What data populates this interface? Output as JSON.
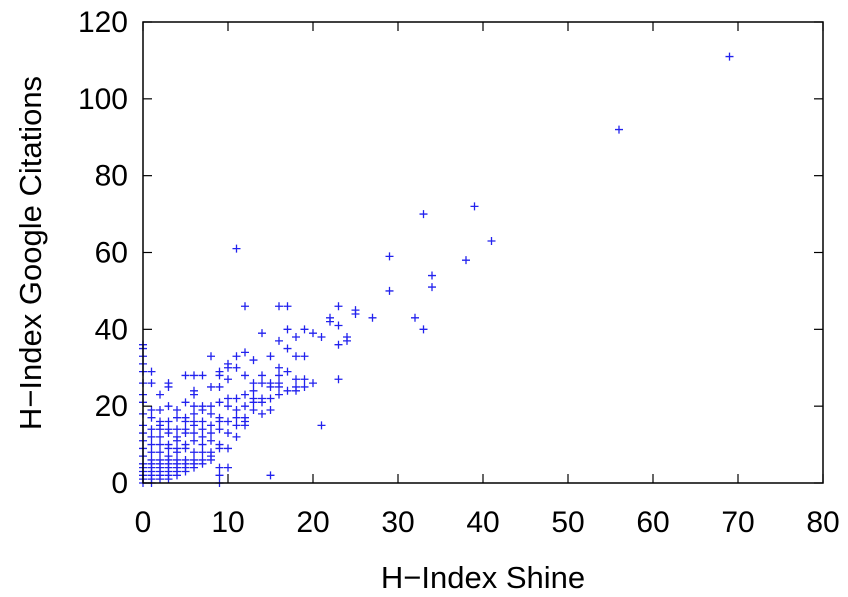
{
  "chart_data": {
    "type": "scatter",
    "title": "",
    "xlabel": "H−Index Shine",
    "ylabel": "H−Index Google Citations",
    "xlim": [
      0,
      80
    ],
    "ylim": [
      0,
      120
    ],
    "xticks": [
      "0",
      "10",
      "20",
      "30",
      "40",
      "50",
      "60",
      "70",
      "80"
    ],
    "yticks": [
      "0",
      "20",
      "40",
      "60",
      "80",
      "100",
      "120"
    ],
    "grid": false,
    "legend": "none",
    "marker": "plus",
    "color": "#2222ee",
    "points": [
      [
        69,
        111
      ],
      [
        56,
        92
      ],
      [
        39,
        72
      ],
      [
        33,
        70
      ],
      [
        41,
        63
      ],
      [
        11,
        61
      ],
      [
        29,
        59
      ],
      [
        38,
        58
      ],
      [
        34,
        54
      ],
      [
        34,
        51
      ],
      [
        29,
        50
      ],
      [
        12,
        46
      ],
      [
        16,
        46
      ],
      [
        17,
        46
      ],
      [
        23,
        46
      ],
      [
        25,
        45
      ],
      [
        25,
        44
      ],
      [
        22,
        43
      ],
      [
        27,
        43
      ],
      [
        32,
        43
      ],
      [
        22,
        42
      ],
      [
        23,
        41
      ],
      [
        17,
        40
      ],
      [
        19,
        40
      ],
      [
        33,
        40
      ],
      [
        20,
        39
      ],
      [
        14,
        39
      ],
      [
        18,
        38
      ],
      [
        21,
        38
      ],
      [
        24,
        38
      ],
      [
        24,
        37
      ],
      [
        16,
        37
      ],
      [
        23,
        36
      ],
      [
        0,
        36
      ],
      [
        0,
        33
      ],
      [
        8,
        33
      ],
      [
        11,
        33
      ],
      [
        12,
        34
      ],
      [
        13,
        32
      ],
      [
        10,
        31
      ],
      [
        11,
        30
      ],
      [
        17,
        29
      ],
      [
        16,
        28
      ],
      [
        14,
        28
      ],
      [
        5,
        28
      ],
      [
        6,
        28
      ],
      [
        7,
        28
      ],
      [
        9,
        28
      ],
      [
        10,
        27
      ],
      [
        18,
        27
      ],
      [
        19,
        27
      ],
      [
        23,
        27
      ],
      [
        0,
        26
      ],
      [
        1,
        26
      ],
      [
        3,
        26
      ],
      [
        3,
        25
      ],
      [
        15,
        25
      ],
      [
        16,
        25
      ],
      [
        13,
        24
      ],
      [
        18,
        24
      ],
      [
        8,
        25
      ],
      [
        9,
        25
      ],
      [
        12,
        23
      ],
      [
        13,
        22
      ],
      [
        10,
        22
      ],
      [
        11,
        22
      ],
      [
        14,
        21
      ],
      [
        12,
        20
      ],
      [
        13,
        19
      ],
      [
        11,
        19
      ],
      [
        9,
        21
      ],
      [
        10,
        20
      ],
      [
        5,
        21
      ],
      [
        6,
        20
      ],
      [
        7,
        20
      ],
      [
        2,
        19
      ],
      [
        3,
        20
      ],
      [
        4,
        19
      ],
      [
        0,
        18
      ],
      [
        1,
        19
      ],
      [
        1,
        17
      ],
      [
        2,
        16
      ],
      [
        8,
        18
      ],
      [
        9,
        17
      ],
      [
        10,
        16
      ],
      [
        11,
        15
      ],
      [
        12,
        17
      ],
      [
        14,
        18
      ],
      [
        15,
        19
      ],
      [
        21,
        15
      ],
      [
        12,
        15
      ],
      [
        6,
        15
      ],
      [
        7,
        14
      ],
      [
        8,
        13
      ],
      [
        9,
        14
      ],
      [
        10,
        13
      ],
      [
        11,
        12
      ],
      [
        5,
        13
      ],
      [
        4,
        14
      ],
      [
        3,
        13
      ],
      [
        2,
        12
      ],
      [
        1,
        12
      ],
      [
        4,
        11
      ],
      [
        5,
        10
      ],
      [
        6,
        11
      ],
      [
        7,
        10
      ],
      [
        8,
        11
      ],
      [
        9,
        10
      ],
      [
        10,
        9
      ],
      [
        3,
        9
      ],
      [
        4,
        8
      ],
      [
        5,
        9
      ],
      [
        6,
        8
      ],
      [
        7,
        8
      ],
      [
        8,
        7
      ],
      [
        2,
        8
      ],
      [
        3,
        7
      ],
      [
        1,
        8
      ],
      [
        2,
        6
      ],
      [
        1,
        6
      ],
      [
        0,
        7
      ],
      [
        0,
        9
      ],
      [
        0,
        11
      ],
      [
        0,
        13
      ],
      [
        0,
        15
      ],
      [
        0,
        5
      ],
      [
        0,
        4
      ],
      [
        0,
        3
      ],
      [
        0,
        2
      ],
      [
        0,
        1
      ],
      [
        0,
        0
      ],
      [
        1,
        2
      ],
      [
        1,
        4
      ],
      [
        1,
        3
      ],
      [
        2,
        4
      ],
      [
        2,
        3
      ],
      [
        3,
        4
      ],
      [
        3,
        5
      ],
      [
        4,
        5
      ],
      [
        4,
        4
      ],
      [
        5,
        5
      ],
      [
        5,
        6
      ],
      [
        6,
        6
      ],
      [
        4,
        6
      ],
      [
        3,
        6
      ],
      [
        2,
        5
      ],
      [
        1,
        5
      ],
      [
        1,
        1
      ],
      [
        1,
        0
      ],
      [
        2,
        1
      ],
      [
        2,
        2
      ],
      [
        3,
        2
      ],
      [
        3,
        3
      ],
      [
        4,
        3
      ],
      [
        5,
        4
      ],
      [
        6,
        5
      ],
      [
        7,
        6
      ],
      [
        8,
        8
      ],
      [
        9,
        9
      ],
      [
        7,
        12
      ],
      [
        6,
        13
      ],
      [
        5,
        16
      ],
      [
        4,
        17
      ],
      [
        3,
        16
      ],
      [
        4,
        12
      ],
      [
        10,
        4
      ],
      [
        9,
        4
      ],
      [
        9,
        2
      ],
      [
        9,
        0
      ],
      [
        15,
        2
      ],
      [
        0,
        21
      ],
      [
        0,
        23
      ],
      [
        0,
        29
      ],
      [
        0,
        31
      ],
      [
        0,
        35
      ],
      [
        1,
        29
      ],
      [
        2,
        23
      ],
      [
        6,
        24
      ],
      [
        6,
        23
      ],
      [
        9,
        29
      ],
      [
        10,
        30
      ],
      [
        16,
        30
      ],
      [
        15,
        33
      ],
      [
        17,
        35
      ],
      [
        18,
        33
      ],
      [
        19,
        33
      ],
      [
        12,
        28
      ],
      [
        13,
        26
      ],
      [
        14,
        26
      ],
      [
        15,
        26
      ],
      [
        16,
        26
      ],
      [
        20,
        26
      ],
      [
        19,
        25
      ],
      [
        18,
        25
      ],
      [
        17,
        24
      ],
      [
        16,
        23
      ],
      [
        15,
        22
      ],
      [
        14,
        22
      ],
      [
        13,
        21
      ],
      [
        8,
        20
      ],
      [
        7,
        19
      ],
      [
        6,
        18
      ],
      [
        5,
        17
      ],
      [
        11,
        17
      ],
      [
        12,
        16
      ],
      [
        9,
        16
      ],
      [
        8,
        15
      ],
      [
        7,
        16
      ],
      [
        6,
        16
      ],
      [
        5,
        14
      ],
      [
        4,
        9
      ],
      [
        3,
        10
      ],
      [
        2,
        10
      ],
      [
        1,
        10
      ],
      [
        2,
        15
      ],
      [
        3,
        14
      ],
      [
        1,
        14
      ],
      [
        2,
        14
      ],
      [
        7,
        5
      ],
      [
        6,
        4
      ],
      [
        5,
        3
      ],
      [
        4,
        2
      ],
      [
        3,
        1
      ],
      [
        8,
        6
      ]
    ]
  }
}
